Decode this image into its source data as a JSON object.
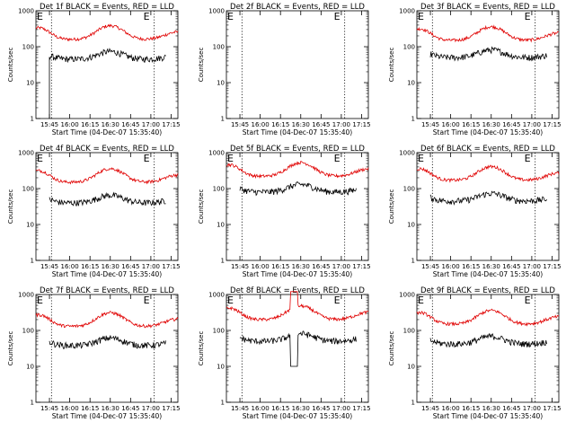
{
  "chart_data": {
    "type": "line",
    "y_scale": "log",
    "ylim": [
      1,
      1000
    ],
    "ylabel": "Counts/sec",
    "y_ticks": [
      "1",
      "10",
      "100",
      "1000"
    ],
    "x_ticks": [
      "15:45",
      "16:00",
      "16:15",
      "16:30",
      "16:45",
      "17:00",
      "17:15"
    ],
    "xlabel": "Start Time (04-Dec-07 15:35:40)",
    "xlim_minutes_after_1535": [
      0,
      105
    ],
    "marker_label": "E",
    "series_colors": {
      "events": "#000000",
      "lld": "#e00000"
    },
    "panels": [
      {
        "title": "Det 1f BLACK = Events, RED = LLD",
        "markers_minutes": [
          11.5,
          87.5
        ],
        "events": true,
        "lld": true,
        "ev_base": 45,
        "lld_base": 160,
        "ev_start": 10,
        "ev_end": 96,
        "lld_start": 0,
        "lld_end": 105,
        "spike": false
      },
      {
        "title": "Det 2f BLACK = Events, RED = LLD",
        "markers_minutes": [
          11.5,
          87.5
        ],
        "events": false,
        "lld": false,
        "ev_base": 0,
        "lld_base": 0,
        "ev_start": 0,
        "ev_end": 0,
        "lld_start": 0,
        "lld_end": 0,
        "spike": false
      },
      {
        "title": "Det 3f BLACK = Events, RED = LLD",
        "markers_minutes": [
          11.5,
          87.5
        ],
        "events": true,
        "lld": true,
        "ev_base": 50,
        "lld_base": 150,
        "ev_start": 10,
        "ev_end": 96,
        "lld_start": 0,
        "lld_end": 105,
        "spike": false
      },
      {
        "title": "Det 4f BLACK = Events, RED = LLD",
        "markers_minutes": [
          11.5,
          87.5
        ],
        "events": true,
        "lld": true,
        "ev_base": 40,
        "lld_base": 150,
        "ev_start": 10,
        "ev_end": 96,
        "lld_start": 0,
        "lld_end": 105,
        "spike": false
      },
      {
        "title": "Det 5f BLACK = Events, RED = LLD",
        "markers_minutes": [
          11.5,
          87.5
        ],
        "events": true,
        "lld": true,
        "ev_base": 80,
        "lld_base": 220,
        "ev_start": 10,
        "ev_end": 96,
        "lld_start": 0,
        "lld_end": 105,
        "spike": false
      },
      {
        "title": "Det 6f BLACK = Events, RED = LLD",
        "markers_minutes": [
          11.5,
          87.5
        ],
        "events": true,
        "lld": true,
        "ev_base": 45,
        "lld_base": 170,
        "ev_start": 10,
        "ev_end": 96,
        "lld_start": 0,
        "lld_end": 105,
        "spike": false
      },
      {
        "title": "Det 7f BLACK = Events, RED = LLD",
        "markers_minutes": [
          11.5,
          87.5
        ],
        "events": true,
        "lld": true,
        "ev_base": 38,
        "lld_base": 130,
        "ev_start": 10,
        "ev_end": 96,
        "lld_start": 0,
        "lld_end": 105,
        "spike": false
      },
      {
        "title": "Det 8f BLACK = Events, RED = LLD",
        "markers_minutes": [
          11.5,
          87.5
        ],
        "events": true,
        "lld": true,
        "ev_base": 50,
        "lld_base": 200,
        "ev_start": 10,
        "ev_end": 96,
        "lld_start": 0,
        "lld_end": 105,
        "spike": true
      },
      {
        "title": "Det 9f BLACK = Events, RED = LLD",
        "markers_minutes": [
          11.5,
          87.5
        ],
        "events": true,
        "lld": true,
        "ev_base": 42,
        "lld_base": 150,
        "ev_start": 10,
        "ev_end": 96,
        "lld_start": 0,
        "lld_end": 105,
        "spike": false
      }
    ]
  }
}
